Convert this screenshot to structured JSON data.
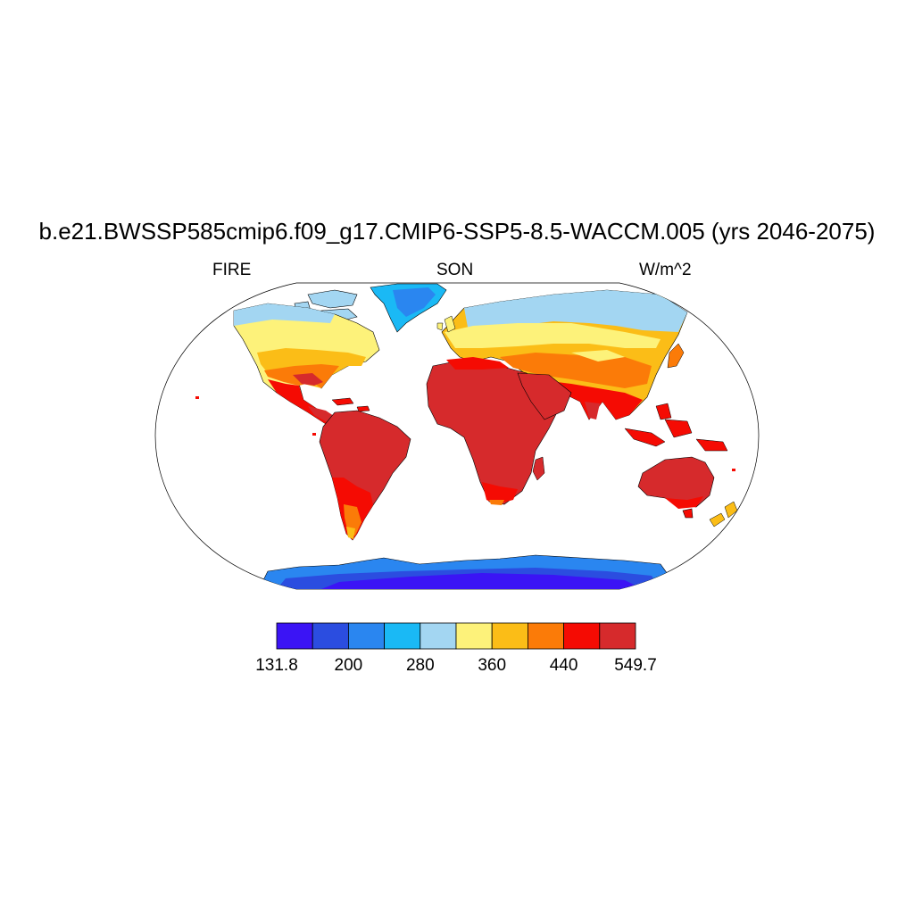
{
  "title": "b.e21.BWSSP585cmip6.f09_g17.CMIP6-SSP5-8.5-WACCM.005 (yrs 2046-2075)",
  "left_string": "FIRE",
  "center_string": "SON",
  "right_string": "W/m^2",
  "colorbar": {
    "colors": [
      "#3b14f5",
      "#2b4de0",
      "#2a86f0",
      "#1ab9f5",
      "#a3d6f2",
      "#fdf27a",
      "#fbbd17",
      "#fb7b08",
      "#f50b03",
      "#d62a2c"
    ],
    "labels": [
      "131.8",
      "200",
      "280",
      "360",
      "440",
      "549.7"
    ]
  }
}
